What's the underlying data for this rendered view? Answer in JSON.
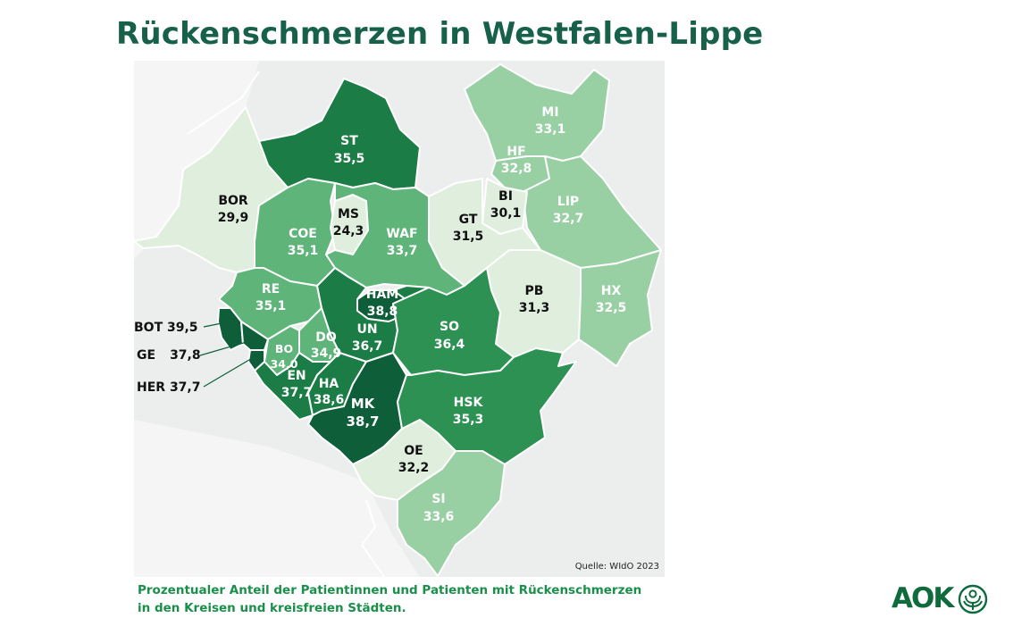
{
  "title": "Rückenschmerzen in Westfalen-Lippe",
  "caption": {
    "line1": "Prozentualer Anteil der Patientinnen und Patienten mit Rückenschmerzen",
    "line2": "in den Kreisen und kreisfreien Städten."
  },
  "source": "Quelle: WIdO 2023",
  "logo": {
    "text": "AOK",
    "icon": "aok-tree-icon"
  },
  "colors": {
    "very_light": "#dfeedd",
    "light": "#98d0a4",
    "medium": "#5fb47a",
    "dark": "#2d9153",
    "darker": "#1c7c45",
    "darkest": "#0f5e3a",
    "title": "#17614a",
    "caption": "#1a8f4a"
  },
  "regions": [
    {
      "code": "MI",
      "value": "33,1"
    },
    {
      "code": "HF",
      "value": "32,8"
    },
    {
      "code": "LIP",
      "value": "32,7"
    },
    {
      "code": "BI",
      "value": "30,1"
    },
    {
      "code": "GT",
      "value": "31,5"
    },
    {
      "code": "ST",
      "value": "35,5"
    },
    {
      "code": "BOR",
      "value": "29,9"
    },
    {
      "code": "MS",
      "value": "24,3"
    },
    {
      "code": "COE",
      "value": "35,1"
    },
    {
      "code": "WAF",
      "value": "33,7"
    },
    {
      "code": "PB",
      "value": "31,3"
    },
    {
      "code": "HX",
      "value": "32,5"
    },
    {
      "code": "RE",
      "value": "35,1"
    },
    {
      "code": "HAM",
      "value": "38,8"
    },
    {
      "code": "SO",
      "value": "36,4"
    },
    {
      "code": "UN",
      "value": "36,7"
    },
    {
      "code": "DO",
      "value": "34,9"
    },
    {
      "code": "BO",
      "value": "34,0"
    },
    {
      "code": "EN",
      "value": "37,7"
    },
    {
      "code": "HA",
      "value": "38,6"
    },
    {
      "code": "MK",
      "value": "38,7"
    },
    {
      "code": "HSK",
      "value": "35,3"
    },
    {
      "code": "OE",
      "value": "32,2"
    },
    {
      "code": "SI",
      "value": "33,6"
    },
    {
      "code": "BOT",
      "value": "39,5"
    },
    {
      "code": "GE",
      "value": "37,8"
    },
    {
      "code": "HER",
      "value": "37,7"
    }
  ]
}
